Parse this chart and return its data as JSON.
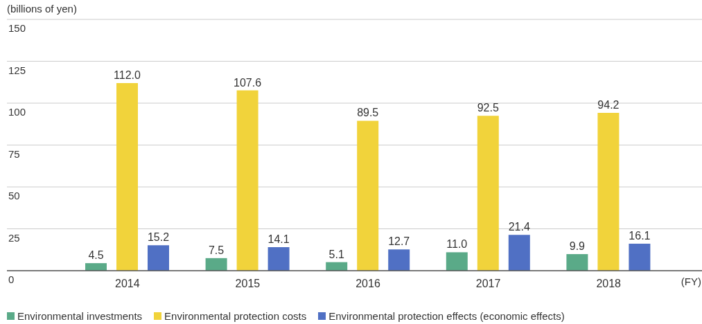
{
  "chart_data": {
    "type": "bar",
    "ylabel": "(billions of yen)",
    "xlabel": "(FY)",
    "categories": [
      "2014",
      "2015",
      "2016",
      "2017",
      "2018"
    ],
    "series": [
      {
        "name": "Environmental investments",
        "color": "#5aaa88",
        "values": [
          4.5,
          7.5,
          5.1,
          11.0,
          9.9
        ],
        "value_labels": [
          "4.5",
          "7.5",
          "5.1",
          "11.0",
          "9.9"
        ]
      },
      {
        "name": "Environmental protection costs",
        "color": "#f1d33b",
        "values": [
          112.0,
          107.6,
          89.5,
          92.5,
          94.2
        ],
        "value_labels": [
          "112.0",
          "107.6",
          "89.5",
          "92.5",
          "94.2"
        ]
      },
      {
        "name": "Environmental protection effects (economic effects)",
        "color": "#5070c4",
        "values": [
          15.2,
          14.1,
          12.7,
          21.4,
          16.1
        ],
        "value_labels": [
          "15.2",
          "14.1",
          "12.7",
          "21.4",
          "16.1"
        ]
      }
    ],
    "ylim": [
      0,
      150
    ],
    "yticks": [
      0,
      25,
      50,
      75,
      100,
      125,
      150
    ],
    "grid": "y",
    "legend": "bottom left"
  }
}
